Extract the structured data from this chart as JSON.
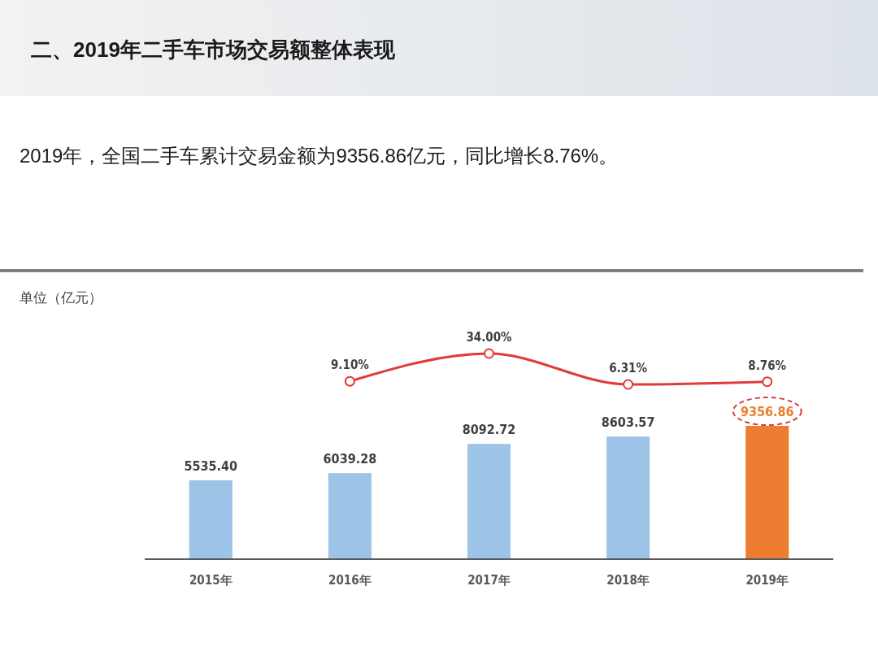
{
  "chart_data": [
    {
      "type": "bar",
      "categories": [
        "2015年",
        "2016年",
        "2017年",
        "2018年",
        "2019年"
      ],
      "colors": [
        "#9dc3e6",
        "#9dc3e6",
        "#9dc3e6",
        "#9dc3e6",
        "#ed7d31"
      ],
      "values": [
        5535.4,
        6039.28,
        8092.72,
        8603.57,
        9356.86
      ],
      "value_labels": [
        "5535.40",
        "6039.28",
        "8092.72",
        "8603.57",
        "9356.86"
      ],
      "grid": false
    },
    {
      "type": "line",
      "title": "二、2019年二手车市场交易额整体表现",
      "subtitle": "2019年，全国二手车累计交易金额为9356.86亿元，同比增长8.76%。",
      "annotations": [
        "单位（亿元）"
      ],
      "categories": [
        null,
        null,
        null,
        null,
        null
      ],
      "color": "#e03a3a",
      "values": [
        null,
        9.1,
        34.0,
        6.31,
        8.76
      ],
      "value_labels": [
        null,
        "9.10%",
        "34.00%",
        "6.31%",
        "8.76%"
      ],
      "marker": "circle"
    }
  ]
}
